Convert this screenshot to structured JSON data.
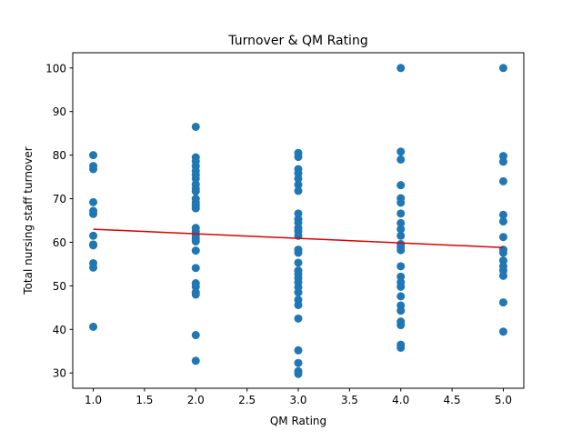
{
  "chart_data": {
    "type": "scatter",
    "title": "Turnover & QM Rating",
    "xlabel": "QM Rating",
    "ylabel": "Total nursing staff turnover",
    "xlim": [
      0.8,
      5.2
    ],
    "ylim": [
      26.5,
      103.5
    ],
    "xticks": [
      "1.0",
      "1.5",
      "2.0",
      "2.5",
      "3.0",
      "3.5",
      "4.0",
      "4.5",
      "5.0"
    ],
    "yticks": [
      "30",
      "40",
      "50",
      "60",
      "70",
      "80",
      "90",
      "100"
    ],
    "grid": false,
    "colors": {
      "points": "#1f77b4",
      "trend": "#e00000"
    },
    "points": [
      [
        1,
        80
      ],
      [
        1,
        77.5
      ],
      [
        1,
        76.8
      ],
      [
        1,
        69.2
      ],
      [
        1,
        67.2
      ],
      [
        1,
        66.5
      ],
      [
        1,
        61.5
      ],
      [
        1,
        59.5
      ],
      [
        1,
        59.3
      ],
      [
        1,
        55.2
      ],
      [
        1,
        54.2
      ],
      [
        1,
        40.6
      ],
      [
        2,
        86.5
      ],
      [
        2,
        79.5
      ],
      [
        2,
        78.6
      ],
      [
        2,
        77.5
      ],
      [
        2,
        76.4
      ],
      [
        2,
        75.5
      ],
      [
        2,
        74.6
      ],
      [
        2,
        73.3
      ],
      [
        2,
        72.3
      ],
      [
        2,
        71.7
      ],
      [
        2,
        70
      ],
      [
        2,
        69.2
      ],
      [
        2,
        68.5
      ],
      [
        2,
        67.8
      ],
      [
        2,
        63.3
      ],
      [
        2,
        62.5
      ],
      [
        2,
        61.5
      ],
      [
        2,
        60.8
      ],
      [
        2,
        60.2
      ],
      [
        2,
        58.1
      ],
      [
        2,
        54.1
      ],
      [
        2,
        50.6
      ],
      [
        2,
        49.8
      ],
      [
        2,
        48.5
      ],
      [
        2,
        48
      ],
      [
        2,
        38.7
      ],
      [
        2,
        32.8
      ],
      [
        3,
        80.5
      ],
      [
        3,
        79.6
      ],
      [
        3,
        76.8
      ],
      [
        3,
        75.8
      ],
      [
        3,
        74.6
      ],
      [
        3,
        73.2
      ],
      [
        3,
        71.8
      ],
      [
        3,
        66.6
      ],
      [
        3,
        65.3
      ],
      [
        3,
        64.5
      ],
      [
        3,
        63.3
      ],
      [
        3,
        62.5
      ],
      [
        3,
        61.5
      ],
      [
        3,
        58.3
      ],
      [
        3,
        57.6
      ],
      [
        3,
        55.3
      ],
      [
        3,
        53.5
      ],
      [
        3,
        52.7
      ],
      [
        3,
        51.8
      ],
      [
        3,
        50.8
      ],
      [
        3,
        49.7
      ],
      [
        3,
        48.5
      ],
      [
        3,
        46.8
      ],
      [
        3,
        45.6
      ],
      [
        3,
        42.5
      ],
      [
        3,
        35.2
      ],
      [
        3,
        32.3
      ],
      [
        3,
        30.4
      ],
      [
        3,
        29.8
      ],
      [
        4,
        100
      ],
      [
        4,
        80.8
      ],
      [
        4,
        79
      ],
      [
        4,
        73.1
      ],
      [
        4,
        70.1
      ],
      [
        4,
        69.1
      ],
      [
        4,
        66.6
      ],
      [
        4,
        64.4
      ],
      [
        4,
        63
      ],
      [
        4,
        61.5
      ],
      [
        4,
        59.6
      ],
      [
        4,
        59
      ],
      [
        4,
        58.2
      ],
      [
        4,
        54.5
      ],
      [
        4,
        52.1
      ],
      [
        4,
        50.8
      ],
      [
        4,
        49.8
      ],
      [
        4,
        47.6
      ],
      [
        4,
        45.5
      ],
      [
        4,
        44.3
      ],
      [
        4,
        41.8
      ],
      [
        4,
        41
      ],
      [
        4,
        36.5
      ],
      [
        4,
        35.8
      ],
      [
        5,
        100
      ],
      [
        5,
        79.8
      ],
      [
        5,
        78.5
      ],
      [
        5,
        74
      ],
      [
        5,
        66.3
      ],
      [
        5,
        64.8
      ],
      [
        5,
        61.2
      ],
      [
        5,
        58.3
      ],
      [
        5,
        57.6
      ],
      [
        5,
        55.8
      ],
      [
        5,
        54.5
      ],
      [
        5,
        53.5
      ],
      [
        5,
        52.3
      ],
      [
        5,
        46.2
      ],
      [
        5,
        39.5
      ]
    ],
    "trendline": {
      "x": [
        1,
        5
      ],
      "y": [
        63,
        58.8
      ]
    }
  }
}
